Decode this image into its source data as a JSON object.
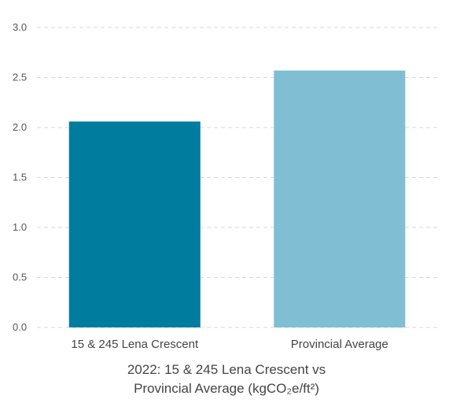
{
  "chart_data": {
    "type": "bar",
    "categories": [
      "15 & 245 Lena Crescent",
      "Provincial Average"
    ],
    "values": [
      2.06,
      2.57
    ],
    "bar_colors": [
      "#007c9e",
      "#7fbed3"
    ],
    "ylim": [
      0,
      3.0
    ],
    "yticks": [
      "0.0",
      "0.5",
      "1.0",
      "1.5",
      "2.0",
      "2.5",
      "3.0"
    ],
    "grid": true,
    "grid_color": "#d9d9d9",
    "title_line1": "2022: 15 & 245 Lena Crescent vs",
    "title_line2": "Provincial Average (kgCO₂e/ft²)"
  }
}
